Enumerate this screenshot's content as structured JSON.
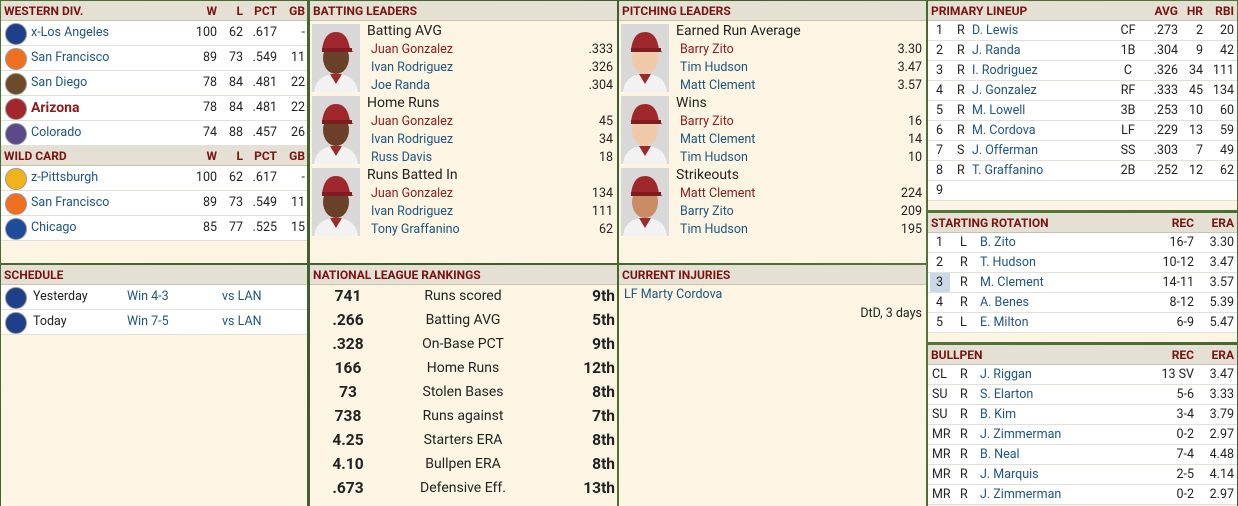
{
  "standings": {
    "division": {
      "title": "WESTERN DIV.",
      "columns": [
        "W",
        "L",
        "PCT",
        "GB"
      ],
      "rows": [
        [
          "x-Los Angeles",
          "100",
          "62",
          ".617",
          "-"
        ],
        [
          "San Francisco",
          "89",
          "73",
          ".549",
          "11"
        ],
        [
          "San Diego",
          "78",
          "84",
          ".481",
          "22"
        ],
        [
          "Arizona",
          "78",
          "84",
          ".481",
          "22"
        ],
        [
          "Colorado",
          "74",
          "88",
          ".457",
          "26"
        ]
      ]
    },
    "wild_card": {
      "title": "WILD CARD",
      "columns": [
        "W",
        "L",
        "PCT",
        "GB"
      ],
      "rows": [
        [
          "z-Pittsburgh",
          "100",
          "62",
          ".617",
          "-"
        ],
        [
          "San Francisco",
          "89",
          "73",
          ".549",
          "11"
        ],
        [
          "Chicago",
          "85",
          "77",
          ".525",
          "15"
        ]
      ]
    }
  },
  "schedule": {
    "title": "SCHEDULE",
    "rows": [
      [
        "Yesterday",
        "Win 4-3",
        "vs LAN"
      ],
      [
        "Today",
        "Win 7-5",
        "vs LAN"
      ]
    ]
  },
  "batting_leaders": {
    "title": "BATTING LEADERS",
    "groups": [
      {
        "stat": "Batting AVG",
        "leaders": [
          [
            "Juan Gonzalez",
            ".333"
          ],
          [
            "Ivan Rodriguez",
            ".326"
          ],
          [
            "Joe Randa",
            ".304"
          ]
        ]
      },
      {
        "stat": "Home Runs",
        "leaders": [
          [
            "Juan Gonzalez",
            "45"
          ],
          [
            "Ivan Rodriguez",
            "34"
          ],
          [
            "Russ Davis",
            "18"
          ]
        ]
      },
      {
        "stat": "Runs Batted In",
        "leaders": [
          [
            "Juan Gonzalez",
            "134"
          ],
          [
            "Ivan Rodriguez",
            "111"
          ],
          [
            "Tony Graffanino",
            "62"
          ]
        ]
      }
    ]
  },
  "pitching_leaders": {
    "title": "PITCHING LEADERS",
    "groups": [
      {
        "stat": "Earned Run Average",
        "leaders": [
          [
            "Barry Zito",
            "3.30"
          ],
          [
            "Tim Hudson",
            "3.47"
          ],
          [
            "Matt Clement",
            "3.57"
          ]
        ]
      },
      {
        "stat": "Wins",
        "leaders": [
          [
            "Barry Zito",
            "16"
          ],
          [
            "Matt Clement",
            "14"
          ],
          [
            "Tim Hudson",
            "10"
          ]
        ]
      },
      {
        "stat": "Strikeouts",
        "leaders": [
          [
            "Matt Clement",
            "224"
          ],
          [
            "Barry Zito",
            "209"
          ],
          [
            "Tim Hudson",
            "195"
          ]
        ]
      }
    ]
  },
  "rankings": {
    "title": "NATIONAL LEAGUE RANKINGS",
    "rows": [
      [
        "741",
        "Runs scored",
        "9th"
      ],
      [
        ".266",
        "Batting AVG",
        "5th"
      ],
      [
        ".328",
        "On-Base PCT",
        "9th"
      ],
      [
        "166",
        "Home Runs",
        "12th"
      ],
      [
        "73",
        "Stolen Bases",
        "8th"
      ],
      [
        "738",
        "Runs against",
        "7th"
      ],
      [
        "4.25",
        "Starters ERA",
        "8th"
      ],
      [
        "4.10",
        "Bullpen ERA",
        "8th"
      ],
      [
        ".673",
        "Defensive Eff.",
        "13th"
      ]
    ]
  },
  "injuries": {
    "title": "CURRENT INJURIES",
    "rows": [
      [
        "LF Marty Cordova",
        "DtD, 3 days"
      ]
    ]
  },
  "lineup": {
    "title": "PRIMARY LINEUP",
    "columns": [
      "AVG",
      "HR",
      "RBI"
    ],
    "rows": [
      [
        "1",
        "R",
        "D. Lewis",
        "CF",
        ".273",
        "2",
        "20"
      ],
      [
        "2",
        "R",
        "J. Randa",
        "1B",
        ".304",
        "9",
        "42"
      ],
      [
        "3",
        "R",
        "I. Rodriguez",
        "C",
        ".326",
        "34",
        "111"
      ],
      [
        "4",
        "R",
        "J. Gonzalez",
        "RF",
        ".333",
        "45",
        "134"
      ],
      [
        "5",
        "R",
        "M. Lowell",
        "3B",
        ".253",
        "10",
        "60"
      ],
      [
        "6",
        "R",
        "M. Cordova",
        "LF",
        ".229",
        "13",
        "59"
      ],
      [
        "7",
        "S",
        "J. Offerman",
        "SS",
        ".303",
        "7",
        "49"
      ],
      [
        "8",
        "R",
        "T. Graffanino",
        "2B",
        ".252",
        "12",
        "62"
      ],
      [
        "9"
      ]
    ]
  },
  "rotation": {
    "title": "STARTING ROTATION",
    "columns": [
      "REC",
      "ERA"
    ],
    "rows": [
      [
        "1",
        "L",
        "B. Zito",
        "16-7",
        "3.30"
      ],
      [
        "2",
        "R",
        "T. Hudson",
        "10-12",
        "3.47"
      ],
      [
        "3",
        "R",
        "M. Clement",
        "14-11",
        "3.57"
      ],
      [
        "4",
        "R",
        "A. Benes",
        "8-12",
        "5.39"
      ],
      [
        "5",
        "L",
        "E. Milton",
        "6-9",
        "5.47"
      ]
    ]
  },
  "bullpen": {
    "title": "BULLPEN",
    "columns": [
      "REC",
      "ERA"
    ],
    "rows": [
      [
        "CL",
        "R",
        "J. Riggan",
        "13 SV",
        "3.47"
      ],
      [
        "SU",
        "R",
        "S. Elarton",
        "5-6",
        "3.33"
      ],
      [
        "SU",
        "R",
        "B. Kim",
        "3-4",
        "3.79"
      ],
      [
        "MR",
        "R",
        "J. Zimmerman",
        "0-2",
        "2.97"
      ],
      [
        "MR",
        "R",
        "B. Neal",
        "7-4",
        "4.48"
      ],
      [
        "MR",
        "R",
        "J. Marquis",
        "2-5",
        "4.14"
      ],
      [
        "MR",
        "R",
        "J. Zimmerman",
        "0-2",
        "2.97"
      ]
    ]
  }
}
